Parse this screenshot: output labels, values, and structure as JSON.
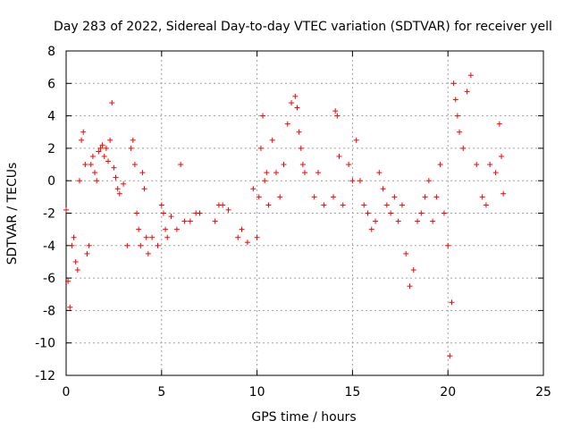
{
  "chart_data": {
    "type": "scatter",
    "title": "Day 283 of 2022, Sidereal Day-to-day VTEC variation (SDTVAR) for receiver yell",
    "xlabel": "GPS time / hours",
    "ylabel": "SDTVAR / TECUs",
    "xlim": [
      0,
      25
    ],
    "ylim": [
      -12,
      8
    ],
    "xticks": [
      "0",
      "5",
      "10",
      "15",
      "20",
      "25"
    ],
    "yticks": [
      "-12",
      "-10",
      "-8",
      "-6",
      "-4",
      "-2",
      "0",
      "2",
      "4",
      "6",
      "8"
    ],
    "grid": true,
    "marker": "+",
    "series_color": "#ff0000",
    "series": [
      {
        "name": "SDTVAR",
        "x": [
          0.0,
          0.1,
          0.2,
          0.3,
          0.4,
          0.5,
          0.6,
          0.7,
          0.8,
          0.9,
          1.0,
          1.1,
          1.2,
          1.3,
          1.4,
          1.5,
          1.6,
          1.7,
          1.8,
          1.9,
          2.0,
          2.1,
          2.2,
          2.3,
          2.4,
          2.5,
          2.6,
          2.7,
          2.8,
          3.0,
          3.2,
          3.4,
          3.5,
          3.6,
          3.7,
          3.8,
          3.9,
          4.0,
          4.1,
          4.2,
          4.3,
          4.5,
          4.8,
          5.0,
          5.1,
          5.2,
          5.3,
          5.5,
          5.8,
          6.0,
          6.2,
          6.5,
          6.8,
          7.0,
          7.8,
          8.0,
          8.2,
          8.5,
          9.0,
          9.2,
          9.5,
          9.8,
          10.0,
          10.1,
          10.2,
          10.3,
          10.4,
          10.5,
          10.6,
          10.8,
          11.0,
          11.2,
          11.4,
          11.6,
          11.8,
          12.0,
          12.1,
          12.2,
          12.3,
          12.4,
          12.5,
          13.0,
          13.2,
          13.5,
          14.0,
          14.1,
          14.2,
          14.3,
          14.5,
          14.8,
          15.0,
          15.2,
          15.4,
          15.6,
          15.8,
          16.0,
          16.2,
          16.4,
          16.6,
          16.8,
          17.0,
          17.2,
          17.4,
          17.6,
          17.8,
          18.0,
          18.2,
          18.4,
          18.6,
          18.8,
          19.0,
          19.2,
          19.4,
          19.6,
          19.8,
          20.0,
          20.1,
          20.2,
          20.3,
          20.4,
          20.5,
          20.6,
          20.8,
          21.0,
          21.2,
          21.5,
          21.8,
          22.0,
          22.2,
          22.5,
          22.7,
          22.8,
          22.9
        ],
        "y": [
          -1.8,
          -6.2,
          -7.8,
          -4.0,
          -3.5,
          -5.0,
          -5.5,
          0.0,
          2.5,
          3.0,
          1.0,
          -4.5,
          -4.0,
          1.0,
          1.5,
          0.5,
          0.0,
          1.8,
          2.0,
          2.2,
          1.5,
          2.0,
          1.2,
          2.5,
          4.8,
          0.8,
          0.2,
          -0.5,
          -0.8,
          -0.2,
          -4.0,
          2.0,
          2.5,
          1.0,
          -2.0,
          -3.0,
          -4.0,
          0.5,
          -0.5,
          -3.5,
          -4.5,
          -3.5,
          -4.0,
          -1.5,
          -2.0,
          -3.0,
          -3.5,
          -2.2,
          -3.0,
          1.0,
          -2.5,
          -2.5,
          -2.0,
          -2.0,
          -2.5,
          -1.5,
          -1.5,
          -1.8,
          -3.5,
          -3.0,
          -3.8,
          -0.5,
          -3.5,
          -1.0,
          2.0,
          4.0,
          0.0,
          0.5,
          -1.5,
          2.5,
          0.5,
          -1.0,
          1.0,
          3.5,
          4.8,
          5.2,
          4.5,
          3.0,
          2.0,
          1.0,
          0.5,
          -1.0,
          0.5,
          -1.5,
          -1.0,
          4.3,
          4.0,
          1.5,
          -1.5,
          1.0,
          0.0,
          2.5,
          0.0,
          -1.5,
          -2.0,
          -3.0,
          -2.5,
          0.5,
          -0.5,
          -1.5,
          -2.0,
          -1.0,
          -2.5,
          -1.5,
          -4.5,
          -6.5,
          -5.5,
          -2.5,
          -2.0,
          -1.0,
          0.0,
          -2.5,
          -1.0,
          1.0,
          -2.0,
          -4.0,
          -10.8,
          -7.5,
          6.0,
          5.0,
          4.0,
          3.0,
          2.0,
          5.5,
          6.5,
          1.0,
          -1.0,
          -1.5,
          1.0,
          0.5,
          3.5,
          1.5,
          -0.8
        ]
      }
    ]
  }
}
